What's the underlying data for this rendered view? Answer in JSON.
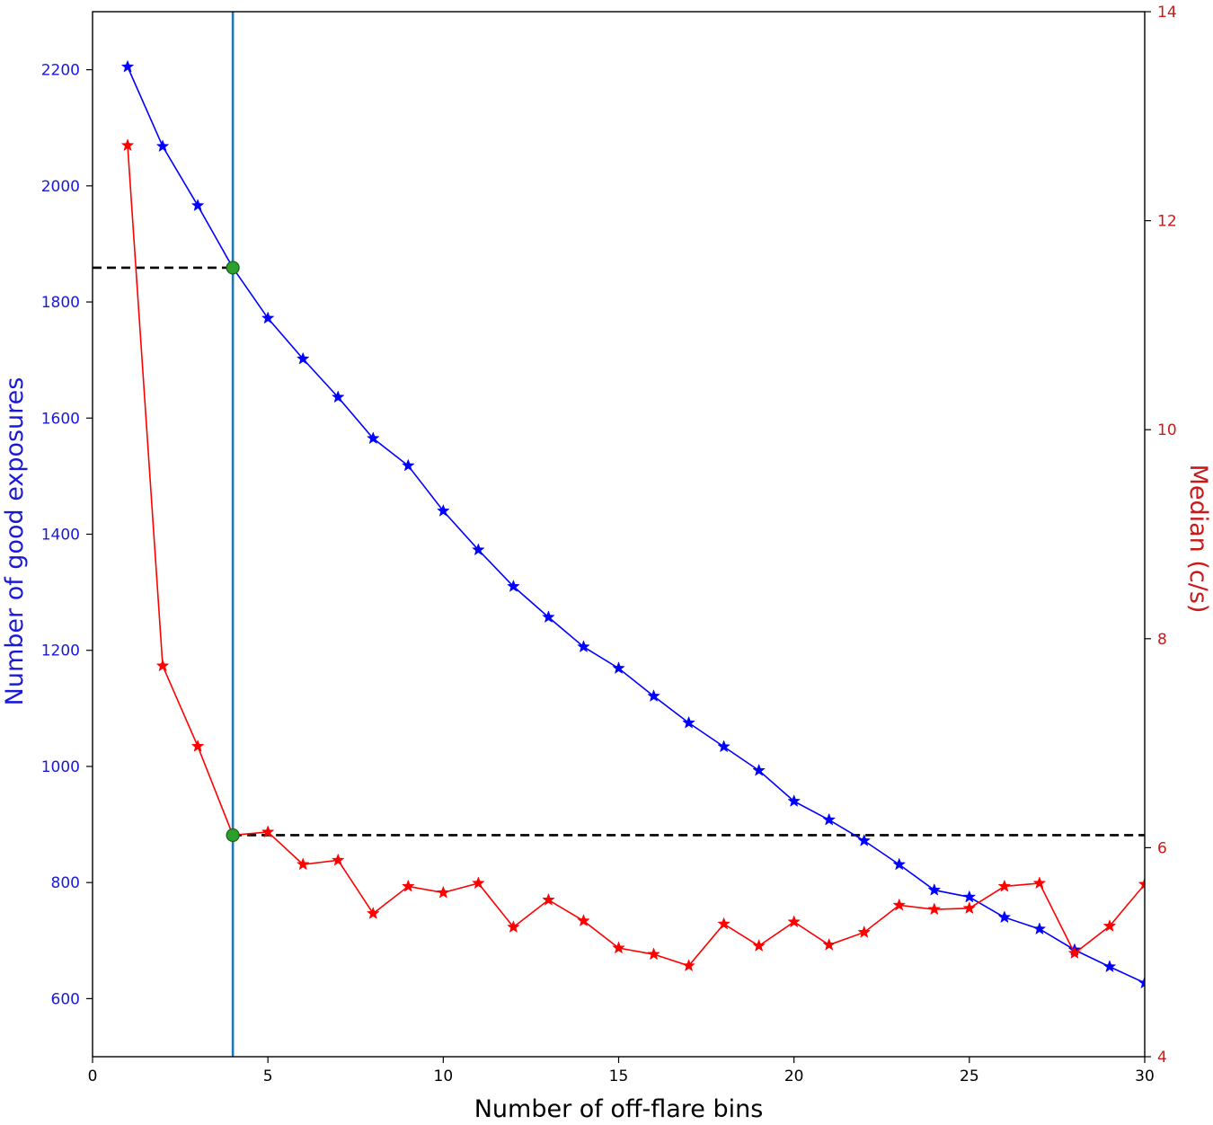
{
  "chart_data": {
    "type": "line",
    "xlabel": "Number of off-flare bins",
    "ylabel_left": "Number of good exposures",
    "ylabel_right": "Median (c/s)",
    "xlim": [
      0,
      30
    ],
    "ylim_left": [
      500,
      2300
    ],
    "ylim_right": [
      4,
      14
    ],
    "x_ticks": [
      0,
      5,
      10,
      15,
      20,
      25,
      30
    ],
    "y_left_ticks": [
      600,
      800,
      1000,
      1200,
      1400,
      1600,
      1800,
      2000,
      2200
    ],
    "y_right_ticks": [
      4,
      6,
      8,
      10,
      12,
      14
    ],
    "colors": {
      "left_axis": "#1a1ad6",
      "right_axis": "#c91a1a",
      "good_exposures_series": "#0000ff",
      "median_series": "#ff0000",
      "vertical_line": "#1f77b4",
      "reference_lines": "#000000",
      "highlight_markers": "#2ca02c"
    },
    "series": [
      {
        "axis": "left",
        "x": [
          1,
          2,
          3,
          4,
          5,
          6,
          7,
          8,
          9,
          10,
          11,
          12,
          13,
          14,
          15,
          16,
          17,
          18,
          19,
          20,
          21,
          22,
          23,
          24,
          25,
          26,
          27,
          28,
          29,
          30
        ],
        "values": [
          2205,
          2068,
          1966,
          1859,
          1772,
          1702,
          1636,
          1565,
          1518,
          1440,
          1373,
          1310,
          1257,
          1206,
          1169,
          1121,
          1075,
          1034,
          993,
          940,
          908,
          872,
          831,
          787,
          775,
          740,
          720,
          684,
          655,
          627
        ]
      },
      {
        "axis": "right",
        "x": [
          1,
          2,
          3,
          4,
          5,
          6,
          7,
          8,
          9,
          10,
          11,
          12,
          13,
          14,
          15,
          16,
          17,
          18,
          19,
          20,
          21,
          22,
          23,
          24,
          25,
          26,
          27,
          28,
          29,
          30
        ],
        "values": [
          12.72,
          7.74,
          6.97,
          6.12,
          6.15,
          5.84,
          5.88,
          5.37,
          5.63,
          5.57,
          5.66,
          5.24,
          5.5,
          5.3,
          5.04,
          4.98,
          4.87,
          5.27,
          5.06,
          5.29,
          5.07,
          5.19,
          5.45,
          5.41,
          5.42,
          5.63,
          5.66,
          4.99,
          5.25,
          5.65
        ]
      }
    ],
    "vertical_line_x": 4,
    "reference_line_left": 1859,
    "reference_line_right": 6.12,
    "highlight_points": [
      {
        "x": 4,
        "axis": "left",
        "value": 1859
      },
      {
        "x": 4,
        "axis": "right",
        "value": 6.12
      }
    ]
  }
}
